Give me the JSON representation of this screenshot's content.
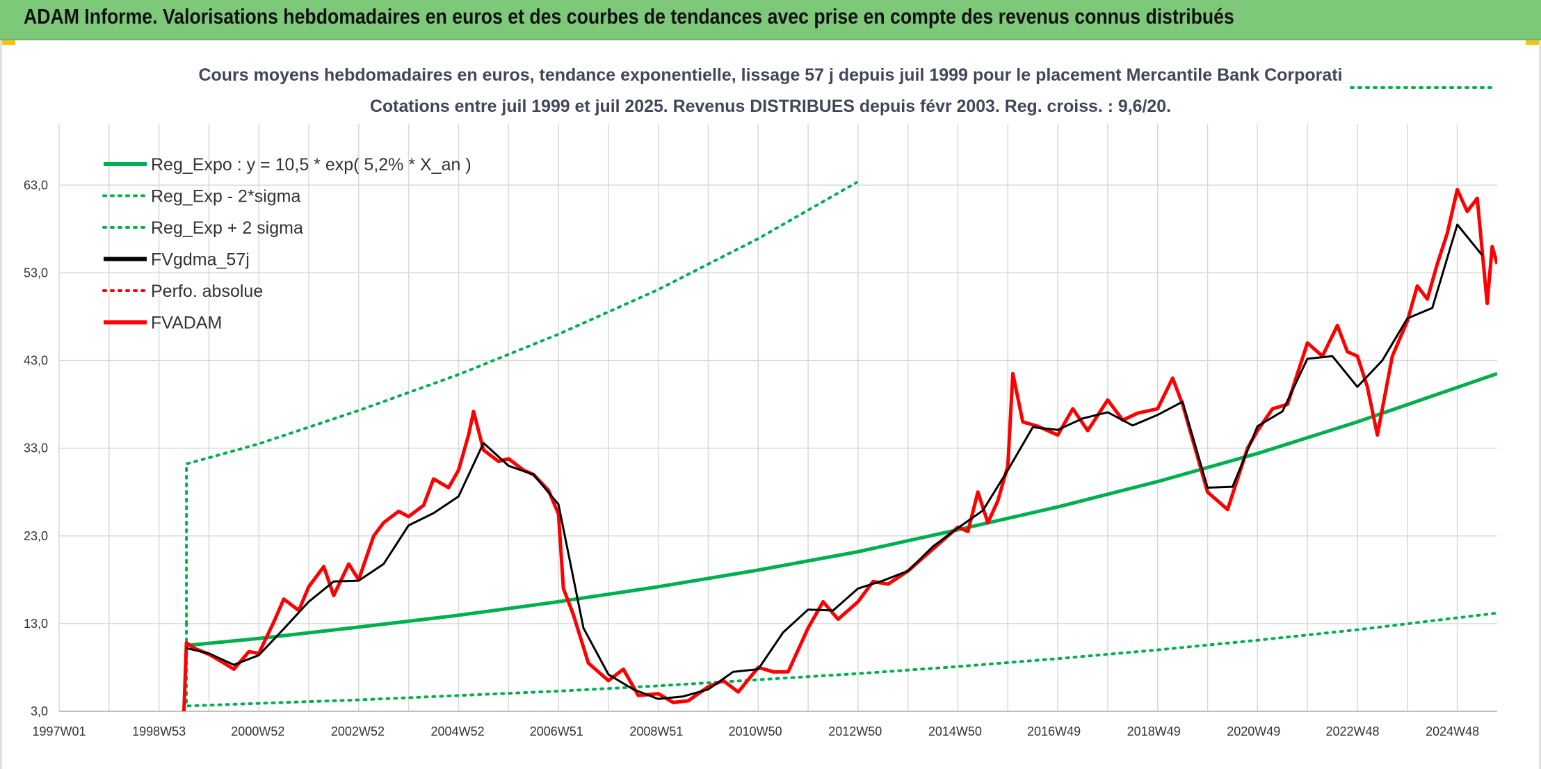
{
  "header": {
    "title": "ADAM Informe. Valorisations hebdomadaires en euros et des courbes de tendances avec prise en compte des revenus connus distribués"
  },
  "colors": {
    "header_bg": "#7ec87a",
    "reg_expo": "#00b050",
    "fvgdma": "#000000",
    "fvadam": "#ff0000",
    "grid": "#d9d9d9"
  },
  "chart_data": {
    "type": "line",
    "title": "Cours moyens hebdomadaires en euros, tendance exponentielle, lissage 57 j depuis juil 1999 pour le placement Mercantile Bank Corporati",
    "subtitle": "Cotations entre juil 1999 et juil 2025. Revenus DISTRIBUES depuis févr 2003. Reg. croiss. : 9,6/20.",
    "xlabel": "",
    "ylabel": "",
    "x_ticks": [
      "1997W01",
      "1998W53",
      "2000W52",
      "2002W52",
      "2004W52",
      "2006W51",
      "2008W51",
      "2010W50",
      "2012W50",
      "2014W50",
      "2016W49",
      "2018W49",
      "2020W49",
      "2022W48",
      "2024W48"
    ],
    "xlim": [
      1997.0,
      2025.8
    ],
    "ylim": [
      3.0,
      70.0
    ],
    "y_ticks": [
      "3,0",
      "13,0",
      "23,0",
      "33,0",
      "43,0",
      "53,0",
      "63,0"
    ],
    "y_tick_values": [
      3,
      13,
      23,
      33,
      43,
      53,
      63
    ],
    "grid": true,
    "legend_position": "top-left",
    "legend": [
      "Reg_Expo : y = 10,5 * exp( 5,2% *  X_an )",
      "Reg_Exp - 2*sigma",
      "Reg_Exp + 2 sigma",
      "FVgdma_57j",
      "Perfo. absolue",
      "FVADAM"
    ],
    "series": [
      {
        "name": "Reg_Expo : y = 10,5 * exp( 5,2% *  X_an )",
        "style": "solid",
        "color": "#00b050",
        "x": [
          1999.55,
          2001.0,
          2003.0,
          2005.0,
          2007.0,
          2009.0,
          2011.0,
          2013.0,
          2015.0,
          2017.0,
          2019.0,
          2021.0,
          2023.0,
          2025.8
        ],
        "values": [
          10.5,
          11.3,
          12.6,
          13.95,
          15.5,
          17.2,
          19.1,
          21.2,
          23.7,
          26.3,
          29.2,
          32.4,
          36.0,
          41.5
        ]
      },
      {
        "name": "Reg_Exp - 2*sigma",
        "style": "dotted",
        "color": "#00b050",
        "x": [
          1999.55,
          1999.55,
          2001.0,
          2003.0,
          2005.0,
          2007.0,
          2009.0,
          2011.0,
          2013.0,
          2015.0,
          2017.0,
          2019.0,
          2021.0,
          2023.0,
          2025.8
        ],
        "values": [
          13.0,
          3.6,
          3.9,
          4.3,
          4.8,
          5.3,
          5.9,
          6.6,
          7.3,
          8.1,
          9.0,
          10.0,
          11.1,
          12.3,
          14.2
        ]
      },
      {
        "name": "Reg_Exp + 2 sigma",
        "style": "dotted",
        "color": "#00b050",
        "x": [
          1999.55,
          1999.55,
          2001.0,
          2003.0,
          2005.0,
          2007.0,
          2009.0,
          2011.0,
          2012.97
        ],
        "values": [
          13.0,
          31.2,
          33.5,
          37.3,
          41.4,
          46.0,
          51.1,
          56.9,
          63.3
        ]
      },
      {
        "name": "FVgdma_57j",
        "style": "solid",
        "color": "#000000",
        "x": [
          1999.55,
          2000.0,
          2000.5,
          2001.0,
          2001.5,
          2002.0,
          2002.5,
          2003.0,
          2003.5,
          2004.0,
          2004.5,
          2005.0,
          2005.5,
          2006.0,
          2006.5,
          2007.0,
          2007.5,
          2008.0,
          2008.5,
          2009.0,
          2009.5,
          2010.0,
          2010.5,
          2011.0,
          2011.5,
          2012.0,
          2012.5,
          2013.0,
          2013.5,
          2014.0,
          2014.5,
          2015.0,
          2015.5,
          2016.0,
          2016.5,
          2017.0,
          2017.5,
          2018.0,
          2018.5,
          2019.0,
          2019.5,
          2020.0,
          2020.5,
          2021.0,
          2021.5,
          2022.0,
          2022.5,
          2023.0,
          2023.5,
          2024.0,
          2024.5,
          2025.0,
          2025.5
        ],
        "values": [
          10.2,
          9.6,
          8.3,
          9.4,
          12.4,
          15.5,
          17.8,
          17.9,
          19.8,
          24.2,
          25.6,
          27.5,
          33.6,
          31.0,
          30.0,
          26.6,
          12.5,
          7.2,
          5.5,
          4.4,
          4.7,
          5.5,
          7.5,
          7.8,
          12.0,
          14.6,
          14.5,
          17.0,
          17.9,
          19.0,
          21.8,
          23.9,
          25.9,
          30.5,
          35.4,
          35.1,
          36.4,
          37.1,
          35.6,
          36.8,
          38.3,
          28.5,
          28.6,
          35.5,
          37.2,
          43.2,
          43.5,
          40.0,
          43.0,
          47.8,
          49.0,
          58.5,
          55.0
        ]
      },
      {
        "name": "Perfo. absolue",
        "style": "dotted",
        "color": "#ff0000",
        "x": [],
        "values": []
      },
      {
        "name": "FVADAM",
        "style": "solid",
        "color": "#ff0000",
        "x": [
          1999.5,
          1999.55,
          1999.7,
          2000.0,
          2000.3,
          2000.5,
          2000.8,
          2001.0,
          2001.3,
          2001.5,
          2001.8,
          2002.0,
          2002.3,
          2002.5,
          2002.8,
          2003.0,
          2003.3,
          2003.5,
          2003.8,
          2004.0,
          2004.3,
          2004.5,
          2004.8,
          2005.0,
          2005.2,
          2005.3,
          2005.5,
          2005.8,
          2006.0,
          2006.3,
          2006.5,
          2006.8,
          2007.0,
          2007.1,
          2007.3,
          2007.6,
          2008.0,
          2008.3,
          2008.6,
          2009.0,
          2009.3,
          2009.6,
          2010.0,
          2010.3,
          2010.6,
          2011.0,
          2011.3,
          2011.6,
          2012.0,
          2012.3,
          2012.6,
          2013.0,
          2013.3,
          2013.6,
          2014.0,
          2014.3,
          2014.6,
          2015.0,
          2015.2,
          2015.4,
          2015.6,
          2015.8,
          2016.0,
          2016.1,
          2016.3,
          2016.6,
          2017.0,
          2017.3,
          2017.6,
          2018.0,
          2018.3,
          2018.6,
          2019.0,
          2019.3,
          2019.5,
          2019.7,
          2020.0,
          2020.2,
          2020.4,
          2020.6,
          2020.8,
          2021.0,
          2021.3,
          2021.6,
          2022.0,
          2022.3,
          2022.6,
          2022.8,
          2023.0,
          2023.2,
          2023.4,
          2023.7,
          2024.0,
          2024.2,
          2024.4,
          2024.6,
          2024.8,
          2025.0,
          2025.2,
          2025.4,
          2025.6,
          2025.7,
          2025.8
        ],
        "values": [
          3.0,
          10.8,
          10.2,
          9.5,
          8.5,
          7.8,
          9.8,
          9.6,
          13.2,
          15.8,
          14.5,
          17.2,
          19.5,
          16.2,
          19.8,
          18.0,
          23.0,
          24.5,
          25.8,
          25.2,
          26.5,
          29.5,
          28.5,
          30.5,
          34.5,
          37.2,
          32.8,
          31.5,
          31.8,
          30.5,
          30.0,
          28.2,
          25.5,
          17.0,
          14.0,
          8.5,
          6.5,
          7.8,
          4.8,
          5.0,
          4.0,
          4.2,
          5.8,
          6.5,
          5.2,
          8.0,
          7.5,
          7.5,
          12.5,
          15.5,
          13.5,
          15.5,
          17.8,
          17.5,
          19.0,
          20.5,
          22.0,
          24.0,
          23.5,
          28.0,
          24.5,
          27.0,
          31.0,
          41.5,
          36.0,
          35.5,
          34.5,
          37.5,
          35.0,
          38.5,
          36.2,
          37.0,
          37.5,
          41.0,
          38.0,
          34.0,
          28.0,
          27.0,
          26.0,
          29.5,
          33.0,
          35.0,
          37.5,
          38.0,
          45.0,
          43.5,
          47.0,
          44.0,
          43.5,
          40.0,
          34.5,
          43.5,
          47.5,
          51.5,
          50.0,
          54.0,
          57.5,
          62.5,
          60.0,
          61.5,
          49.5,
          56.0,
          54.0
        ]
      }
    ]
  }
}
